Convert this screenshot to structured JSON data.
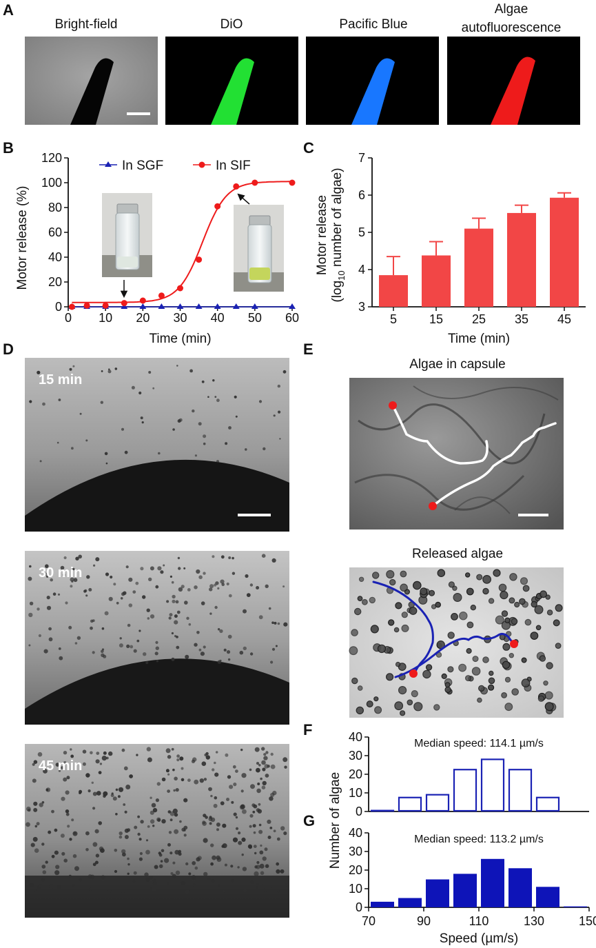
{
  "panel_letters": [
    "A",
    "B",
    "C",
    "D",
    "E",
    "F",
    "G"
  ],
  "panel_a": {
    "titles": [
      "Bright-field",
      "DiO",
      "Pacific Blue",
      "Algae",
      "autofluorescence"
    ],
    "colors": {
      "brightfield": "#8e8e8e",
      "dio": "#22e033",
      "pacific_blue": "#1877ff",
      "algae": "#ee1b1b"
    }
  },
  "panel_d": {
    "labels": [
      "15 min",
      "30 min",
      "45 min"
    ]
  },
  "panel_e": {
    "titles": [
      "Algae in capsule",
      "Released algae"
    ],
    "track_colors": [
      "#ffffff",
      "#1a22b4"
    ],
    "marker_color": "#ee1b1b"
  },
  "chart_data": [
    {
      "id": "B",
      "type": "line",
      "xlabel": "Time (min)",
      "ylabel": "Motor release (%)",
      "xlim": [
        0,
        60
      ],
      "ylim": [
        0,
        120
      ],
      "xticks": [
        0,
        10,
        20,
        30,
        40,
        50,
        60
      ],
      "yticks": [
        0,
        20,
        40,
        60,
        80,
        100,
        120
      ],
      "legend_position": "top",
      "series": [
        {
          "name": "In SGF",
          "color": "#1a22b4",
          "marker": "triangle",
          "x": [
            1,
            5,
            10,
            15,
            20,
            25,
            30,
            35,
            40,
            45,
            50,
            60
          ],
          "y": [
            0,
            0,
            0,
            0,
            0,
            0,
            0,
            0,
            0,
            0,
            0,
            0
          ]
        },
        {
          "name": "In SIF",
          "color": "#ee1b1b",
          "marker": "circle",
          "x": [
            1,
            5,
            10,
            15,
            20,
            25,
            30,
            35,
            40,
            45,
            50,
            60
          ],
          "y": [
            0,
            1,
            1,
            3,
            5,
            9,
            15,
            38,
            81,
            97,
            100,
            100
          ]
        }
      ],
      "fit": {
        "series": "In SIF",
        "bottom": 3.5,
        "top": 101,
        "x50": 36,
        "slope": 3.2
      }
    },
    {
      "id": "C",
      "type": "bar",
      "xlabel": "Time (min)",
      "ylabel_line1": "Motor release",
      "ylabel_line2_prefix": "(log",
      "ylabel_line2_sub": "10",
      "ylabel_line2_suffix": " number of algae)",
      "categories": [
        "5",
        "15",
        "25",
        "35",
        "45"
      ],
      "values": [
        3.85,
        4.38,
        5.1,
        5.52,
        5.93
      ],
      "errors": [
        0.5,
        0.37,
        0.28,
        0.21,
        0.13
      ],
      "ylim": [
        3,
        7
      ],
      "yticks": [
        3,
        4,
        5,
        6,
        7
      ],
      "color": "#f24646"
    },
    {
      "id": "F",
      "type": "bar",
      "style": "outline",
      "annotation": "Median speed:  114.1 µm/s",
      "ylabel": "Number of algae",
      "bin_centers": [
        75,
        85,
        95,
        105,
        115,
        125,
        135,
        145
      ],
      "values": [
        0.5,
        7.5,
        9,
        22.5,
        28,
        22.5,
        7.5,
        0
      ],
      "xlim": [
        70,
        150
      ],
      "ylim": [
        0,
        40
      ],
      "yticks": [
        0,
        10,
        20,
        30,
        40
      ],
      "color": "#1a22b4"
    },
    {
      "id": "G",
      "type": "bar",
      "style": "filled",
      "annotation": "Median speed:  113.2 µm/s",
      "xlabel": "Speed (µm/s)",
      "bin_centers": [
        75,
        85,
        95,
        105,
        115,
        125,
        135,
        145
      ],
      "values": [
        3,
        5,
        15,
        18,
        26,
        21,
        11,
        0.5
      ],
      "xlim": [
        70,
        150
      ],
      "ylim": [
        0,
        40
      ],
      "xticks": [
        70,
        90,
        110,
        130,
        150
      ],
      "yticks": [
        0,
        10,
        20,
        30,
        40
      ],
      "color": "#0e14b8"
    }
  ]
}
